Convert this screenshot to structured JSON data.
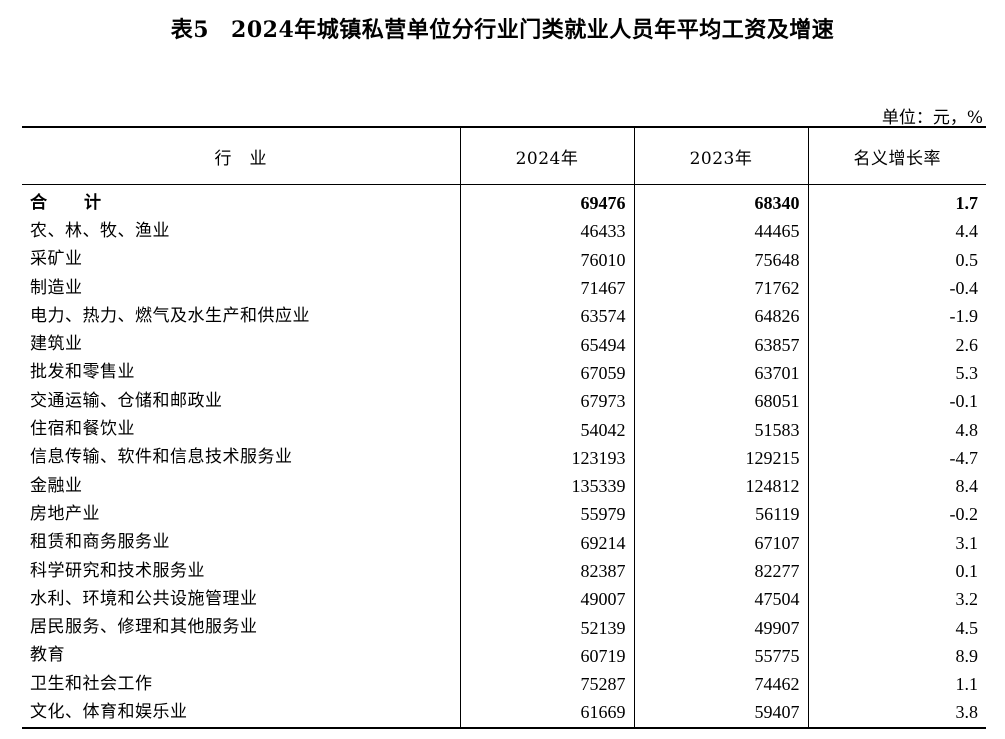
{
  "title": {
    "table_no": "表5",
    "text": "2024年城镇私营单位分行业门类就业人员年平均工资及增速"
  },
  "unit": "单位：元，%",
  "table": {
    "headers": [
      "行　业",
      "2024年",
      "2023年",
      "名义增长率"
    ],
    "rows": [
      [
        "合　计",
        "69476",
        "68340",
        "1.7"
      ],
      [
        "农、林、牧、渔业",
        "46433",
        "44465",
        "4.4"
      ],
      [
        "采矿业",
        "76010",
        "75648",
        "0.5"
      ],
      [
        "制造业",
        "71467",
        "71762",
        "-0.4"
      ],
      [
        "电力、热力、燃气及水生产和供应业",
        "63574",
        "64826",
        "-1.9"
      ],
      [
        "建筑业",
        "65494",
        "63857",
        "2.6"
      ],
      [
        "批发和零售业",
        "67059",
        "63701",
        "5.3"
      ],
      [
        "交通运输、仓储和邮政业",
        "67973",
        "68051",
        "-0.1"
      ],
      [
        "住宿和餐饮业",
        "54042",
        "51583",
        "4.8"
      ],
      [
        "信息传输、软件和信息技术服务业",
        "123193",
        "129215",
        "-4.7"
      ],
      [
        "金融业",
        "135339",
        "124812",
        "8.4"
      ],
      [
        "房地产业",
        "55979",
        "56119",
        "-0.2"
      ],
      [
        "租赁和商务服务业",
        "69214",
        "67107",
        "3.1"
      ],
      [
        "科学研究和技术服务业",
        "82387",
        "82277",
        "0.1"
      ],
      [
        "水利、环境和公共设施管理业",
        "49007",
        "47504",
        "3.2"
      ],
      [
        "居民服务、修理和其他服务业",
        "52139",
        "49907",
        "4.5"
      ],
      [
        "教育",
        "60719",
        "55775",
        "8.9"
      ],
      [
        "卫生和社会工作",
        "75287",
        "74462",
        "1.1"
      ],
      [
        "文化、体育和娱乐业",
        "61669",
        "59407",
        "3.8"
      ]
    ]
  }
}
